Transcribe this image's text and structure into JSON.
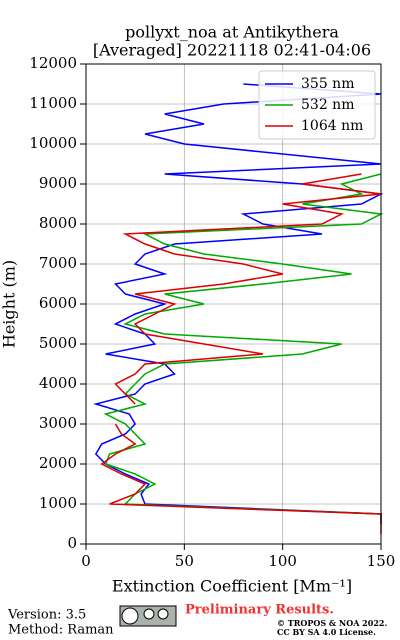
{
  "chart_data": {
    "type": "profile",
    "title": "pollyxt_noa at Antikythera",
    "subtitle": "[Averaged] 20221118 02:41-04:06",
    "x_label": "Extinction Coefficient [Mm⁻¹]",
    "y_label": "Height (m)",
    "y": [
      250,
      500,
      750,
      1000,
      1250,
      1500,
      1750,
      2000,
      2250,
      2500,
      2750,
      3000,
      3250,
      3500,
      3750,
      4000,
      4250,
      4500,
      4750,
      5000,
      5250,
      5500,
      5750,
      6000,
      6250,
      6500,
      6750,
      7000,
      7250,
      7500,
      7750,
      8000,
      8250,
      8500,
      8750,
      9000,
      9250,
      9500,
      9750,
      10000,
      10250,
      10500,
      10750,
      11000,
      11250,
      11500
    ],
    "series": [
      {
        "name": "355 nm",
        "color": "#0000ff",
        "values": [
          null,
          150,
          150,
          30,
          28,
          32,
          20,
          10,
          5,
          8,
          20,
          25,
          22,
          5,
          25,
          30,
          45,
          40,
          10,
          35,
          30,
          15,
          25,
          40,
          20,
          15,
          40,
          25,
          30,
          45,
          120,
          90,
          80,
          140,
          150,
          110,
          40,
          150,
          100,
          50,
          30,
          60,
          40,
          70,
          150,
          80
        ]
      },
      {
        "name": "532 nm",
        "color": "#00aa00",
        "values": [
          null,
          150,
          150,
          20,
          25,
          35,
          25,
          10,
          12,
          30,
          25,
          20,
          10,
          30,
          20,
          25,
          30,
          40,
          110,
          130,
          40,
          20,
          30,
          60,
          40,
          90,
          135,
          100,
          60,
          40,
          30,
          140,
          150,
          110,
          140,
          130,
          150,
          null,
          null,
          null,
          null,
          null,
          null,
          null,
          null,
          null
        ]
      },
      {
        "name": "1064 nm",
        "color": "#dd0000",
        "values": [
          150,
          150,
          150,
          12,
          25,
          30,
          18,
          8,
          15,
          25,
          18,
          15,
          null,
          25,
          20,
          15,
          25,
          30,
          90,
          60,
          30,
          25,
          35,
          45,
          25,
          70,
          100,
          80,
          45,
          30,
          20,
          120,
          130,
          100,
          150,
          110,
          140,
          null,
          null,
          null,
          null,
          null,
          null,
          null,
          null,
          null
        ]
      }
    ],
    "xlim": [
      0,
      150
    ],
    "xticks": [
      0,
      50,
      100,
      150
    ],
    "ylim": [
      0,
      12000
    ],
    "yticks": [
      0,
      1000,
      2000,
      3000,
      4000,
      5000,
      6000,
      7000,
      8000,
      9000,
      10000,
      11000,
      12000
    ],
    "grid": true,
    "legend": "upper-right",
    "footer": {
      "version": "Version: 3.5",
      "method": "Method: Raman",
      "notice": "Preliminary Results.",
      "copyright": "© TROPOS & NOA 2022.",
      "license": "CC BY SA 4.0 License."
    }
  }
}
